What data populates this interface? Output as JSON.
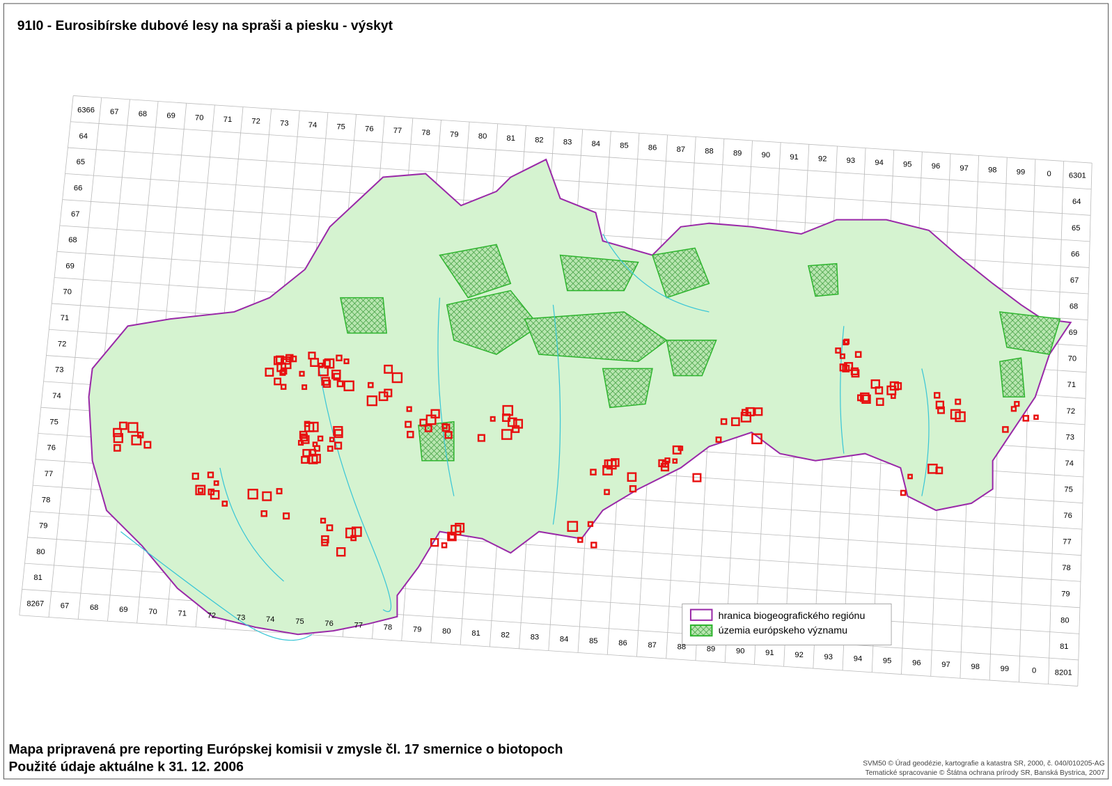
{
  "header": {
    "title": "91I0 - Eurosibírske dubové lesy na spraši a piesku - výskyt"
  },
  "grid": {
    "top_labels": [
      "6366",
      "67",
      "68",
      "69",
      "70",
      "71",
      "72",
      "73",
      "74",
      "75",
      "76",
      "77",
      "78",
      "79",
      "80",
      "81",
      "82",
      "83",
      "84",
      "85",
      "86",
      "87",
      "88",
      "89",
      "90",
      "91",
      "92",
      "93",
      "94",
      "95",
      "96",
      "97",
      "98",
      "99",
      "0",
      "6301"
    ],
    "left_labels": [
      "64",
      "65",
      "66",
      "67",
      "68",
      "69",
      "70",
      "71",
      "72",
      "73",
      "74",
      "75",
      "76",
      "77",
      "78",
      "79",
      "80",
      "81"
    ],
    "right_labels": [
      "64",
      "65",
      "66",
      "67",
      "68",
      "69",
      "70",
      "71",
      "72",
      "73",
      "74",
      "75",
      "76",
      "77",
      "78",
      "79",
      "80",
      "81"
    ],
    "bottom_labels": [
      "8267",
      "67",
      "68",
      "69",
      "70",
      "71",
      "72",
      "73",
      "74",
      "75",
      "76",
      "77",
      "78",
      "79",
      "80",
      "81",
      "82",
      "83",
      "84",
      "85",
      "86",
      "87",
      "88",
      "89",
      "90",
      "91",
      "92",
      "93",
      "94",
      "95",
      "96",
      "97",
      "98",
      "99",
      "0",
      "8201"
    ]
  },
  "legend": {
    "items": [
      "hranica biogeografického regiónu",
      "územia európskeho významu"
    ]
  },
  "footer": {
    "lines": [
      "Mapa pripravená pre reporting Európskej komisii v zmysle čl. 17 smernice o biotopoch",
      "Použité údaje aktuálne k 31. 12. 2006"
    ],
    "credits": [
      "SVM50 © Úrad geodézie, kartografie a katastra SR, 2000, č. 040/010205-AG",
      "Tematické spracovanie © Štátna ochrana prírody SR, Banská Bystrica, 2007"
    ]
  }
}
